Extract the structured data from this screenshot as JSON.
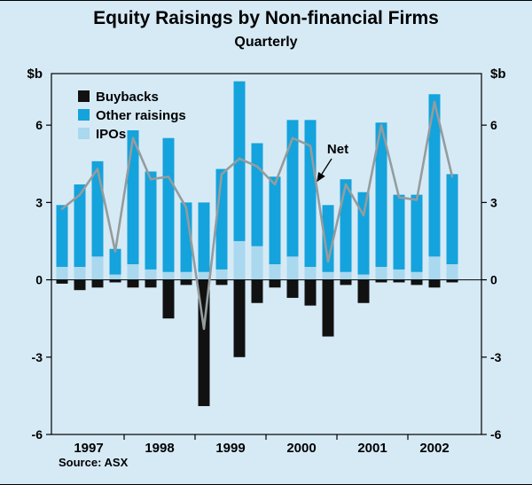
{
  "page": {
    "title": "Equity Raisings by Non-financial Firms",
    "subtitle": "Quarterly",
    "source": "Source: ASX"
  },
  "chart_data": {
    "type": "bar",
    "stacked": true,
    "title": "Equity Raisings by Non-financial Firms",
    "subtitle": "Quarterly",
    "unit_label": "$b",
    "ylim": [
      -6,
      8
    ],
    "yticks": [
      6,
      3,
      0,
      -3,
      -6
    ],
    "grid": false,
    "legend_position": "top-left",
    "categories": [
      "1997 Q1",
      "1997 Q2",
      "1997 Q3",
      "1997 Q4",
      "1998 Q1",
      "1998 Q2",
      "1998 Q3",
      "1998 Q4",
      "1999 Q1",
      "1999 Q2",
      "1999 Q3",
      "1999 Q4",
      "2000 Q1",
      "2000 Q2",
      "2000 Q3",
      "2000 Q4",
      "2001 Q1",
      "2001 Q2",
      "2001 Q3",
      "2001 Q4",
      "2002 Q1",
      "2002 Q2",
      "2002 Q3"
    ],
    "years": [
      {
        "label": "1997",
        "from": 0,
        "count": 4
      },
      {
        "label": "1998",
        "from": 4,
        "count": 4
      },
      {
        "label": "1999",
        "from": 8,
        "count": 4
      },
      {
        "label": "2000",
        "from": 12,
        "count": 4
      },
      {
        "label": "2001",
        "from": 16,
        "count": 4
      },
      {
        "label": "2002",
        "from": 20,
        "count": 3
      }
    ],
    "legend": [
      "Buybacks",
      "Other raisings",
      "IPOs"
    ],
    "series": [
      {
        "name": "Buybacks",
        "type": "bar",
        "color": "#111111",
        "values": [
          -0.15,
          -0.4,
          -0.3,
          -0.1,
          -0.3,
          -0.3,
          -1.5,
          -0.2,
          -4.9,
          -0.2,
          -3.0,
          -0.9,
          -0.3,
          -0.7,
          -1.0,
          -2.2,
          -0.2,
          -0.9,
          -0.1,
          -0.1,
          -0.2,
          -0.3,
          -0.1
        ]
      },
      {
        "name": "Other raisings",
        "type": "bar",
        "color": "#14a3dc",
        "values": [
          2.4,
          3.2,
          3.7,
          1.0,
          5.2,
          3.8,
          5.2,
          2.7,
          2.7,
          3.9,
          6.2,
          4.0,
          3.4,
          5.3,
          5.7,
          2.6,
          3.6,
          3.2,
          5.6,
          2.9,
          3.0,
          6.3,
          3.5
        ]
      },
      {
        "name": "IPOs",
        "type": "bar",
        "color": "#a9d8ef",
        "values": [
          0.5,
          0.5,
          0.9,
          0.2,
          0.6,
          0.4,
          0.3,
          0.3,
          0.3,
          0.4,
          1.5,
          1.3,
          0.6,
          0.9,
          0.5,
          0.3,
          0.3,
          0.2,
          0.5,
          0.4,
          0.3,
          0.9,
          0.6
        ]
      },
      {
        "name": "Net",
        "type": "line",
        "color": "#949c9e",
        "values": [
          2.75,
          3.3,
          4.3,
          1.1,
          5.5,
          3.9,
          4.0,
          2.8,
          -1.9,
          4.1,
          4.7,
          4.4,
          3.7,
          5.5,
          5.2,
          0.7,
          3.7,
          2.5,
          6.0,
          3.2,
          3.1,
          6.9,
          4.0
        ]
      }
    ],
    "annotation": {
      "label": "Net"
    },
    "source": "Source: ASX",
    "background_color": "#d6eaf6"
  }
}
